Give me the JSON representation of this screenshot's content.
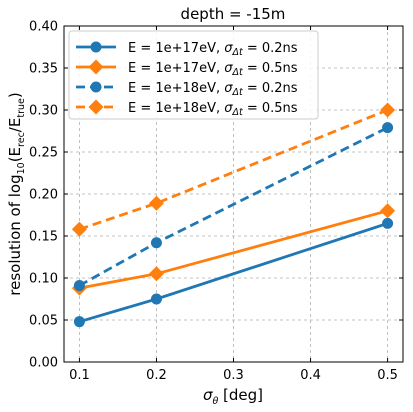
{
  "chart_data": {
    "type": "line",
    "title": "depth = -15m",
    "xlabel_base": "σ",
    "xlabel_sub": "θ",
    "xlabel_rest": " [deg]",
    "ylabel_pre": "resolution of log",
    "ylabel_sub1": "10",
    "ylabel_mid1": "(E",
    "ylabel_sub2": "rec",
    "ylabel_mid2": "/E",
    "ylabel_sub3": "true",
    "ylabel_end": ")",
    "xlim": [
      0.08,
      0.52
    ],
    "ylim": [
      0.0,
      0.4
    ],
    "xticks": [
      0.1,
      0.2,
      0.3,
      0.4,
      0.5
    ],
    "xtick_labels": [
      "0.1",
      "0.2",
      "0.3",
      "0.4",
      "0.5"
    ],
    "yticks": [
      0.0,
      0.05,
      0.1,
      0.15,
      0.2,
      0.25,
      0.3,
      0.35,
      0.4
    ],
    "ytick_labels": [
      "0.00",
      "0.05",
      "0.10",
      "0.15",
      "0.20",
      "0.25",
      "0.30",
      "0.35",
      "0.40"
    ],
    "grid": true,
    "legend_placement": "upper-left",
    "x": [
      0.1,
      0.2,
      0.5
    ],
    "series": [
      {
        "name_pre": "E = 1e+17eV, ",
        "name_sym": "σ",
        "name_sub": "Δt",
        "name_post": " = 0.2ns",
        "values": [
          0.048,
          0.075,
          0.165
        ],
        "color": "#1f77b4",
        "marker": "circle",
        "dash": "solid"
      },
      {
        "name_pre": "E = 1e+17eV, ",
        "name_sym": "σ",
        "name_sub": "Δt",
        "name_post": " = 0.5ns",
        "values": [
          0.088,
          0.105,
          0.18
        ],
        "color": "#ff7f0e",
        "marker": "diamond",
        "dash": "solid"
      },
      {
        "name_pre": "E = 1e+18eV, ",
        "name_sym": "σ",
        "name_sub": "Δt",
        "name_post": " = 0.2ns",
        "values": [
          0.091,
          0.142,
          0.279
        ],
        "color": "#1f77b4",
        "marker": "circle",
        "dash": "dashed"
      },
      {
        "name_pre": "E = 1e+18eV, ",
        "name_sym": "σ",
        "name_sub": "Δt",
        "name_post": " = 0.5ns",
        "values": [
          0.158,
          0.189,
          0.3
        ],
        "color": "#ff7f0e",
        "marker": "diamond",
        "dash": "dashed"
      }
    ]
  }
}
